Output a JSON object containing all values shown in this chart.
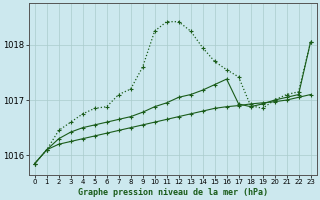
{
  "xlabel": "Graphe pression niveau de la mer (hPa)",
  "bg_color": "#cce8ee",
  "grid_color": "#aacccc",
  "line_color": "#1a5c1a",
  "xlim": [
    -0.5,
    23.5
  ],
  "ylim": [
    1015.65,
    1018.75
  ],
  "yticks": [
    1016,
    1017,
    1018
  ],
  "xticks": [
    0,
    1,
    2,
    3,
    4,
    5,
    6,
    7,
    8,
    9,
    10,
    11,
    12,
    13,
    14,
    15,
    16,
    17,
    18,
    19,
    20,
    21,
    22,
    23
  ],
  "line1_x": [
    0,
    1,
    2,
    3,
    4,
    5,
    6,
    7,
    8,
    9,
    10,
    11,
    12,
    13,
    14,
    15,
    16,
    17,
    18,
    19,
    20,
    21,
    22,
    23
  ],
  "line1_y": [
    1015.85,
    1016.1,
    1016.2,
    1016.25,
    1016.3,
    1016.35,
    1016.4,
    1016.45,
    1016.5,
    1016.55,
    1016.6,
    1016.65,
    1016.7,
    1016.75,
    1016.8,
    1016.85,
    1016.88,
    1016.9,
    1016.93,
    1016.95,
    1016.97,
    1017.0,
    1017.05,
    1017.1
  ],
  "line2_x": [
    0,
    1,
    2,
    3,
    4,
    5,
    6,
    7,
    8,
    9,
    10,
    11,
    12,
    13,
    14,
    15,
    16,
    17,
    18,
    19,
    20,
    21,
    22,
    23
  ],
  "line2_y": [
    1015.85,
    1016.1,
    1016.3,
    1016.42,
    1016.5,
    1016.55,
    1016.6,
    1016.65,
    1016.7,
    1016.78,
    1016.88,
    1016.95,
    1017.05,
    1017.1,
    1017.18,
    1017.28,
    1017.38,
    1016.93,
    1016.88,
    1016.93,
    1017.0,
    1017.05,
    1017.1,
    1018.05
  ],
  "line3_x": [
    0,
    1,
    2,
    3,
    4,
    5,
    6,
    7,
    8,
    9,
    10,
    11,
    12,
    13,
    14,
    15,
    16,
    17,
    18,
    19,
    20,
    21,
    22,
    23
  ],
  "line3_y": [
    1015.85,
    1016.1,
    1016.45,
    1016.6,
    1016.75,
    1016.85,
    1016.88,
    1017.1,
    1017.2,
    1017.6,
    1018.25,
    1018.42,
    1018.42,
    1018.25,
    1017.95,
    1017.7,
    1017.55,
    1017.42,
    1016.9,
    1016.85,
    1017.0,
    1017.1,
    1017.15,
    1018.05
  ]
}
